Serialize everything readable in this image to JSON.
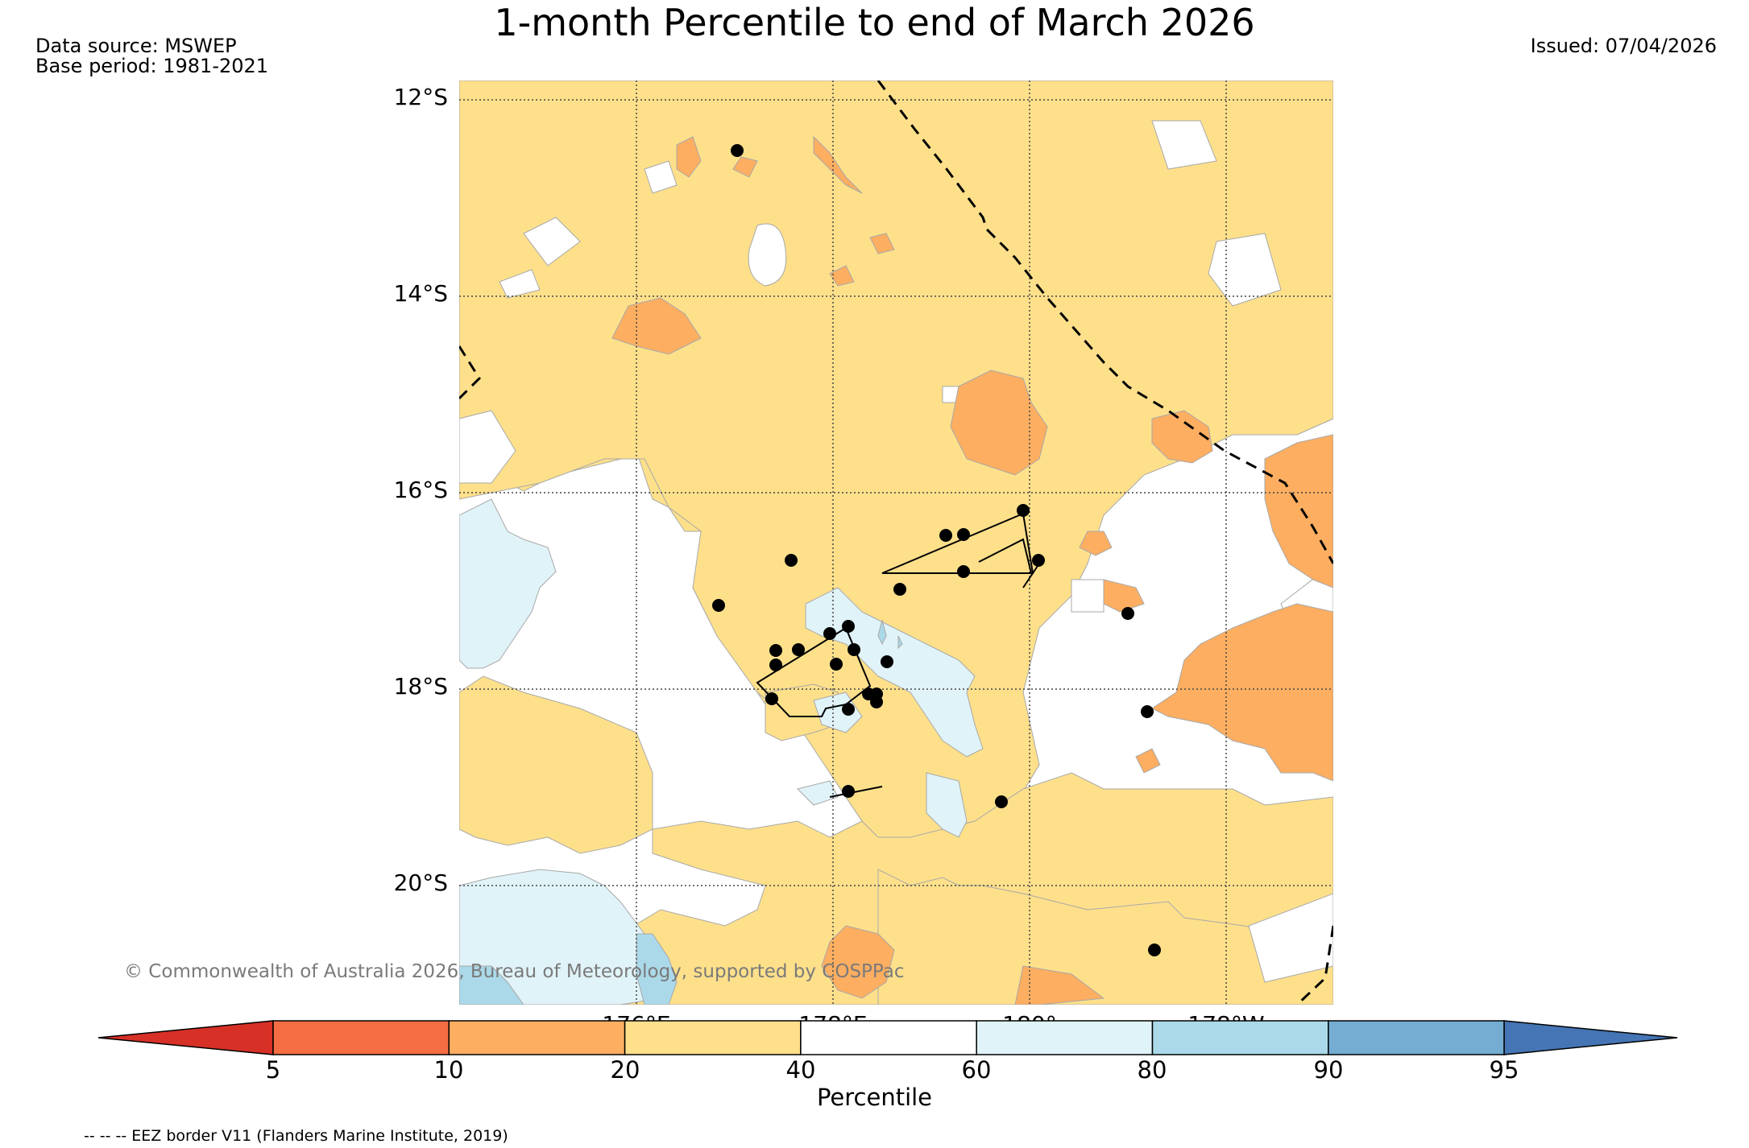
{
  "title": "1-month Percentile to end of March 2026",
  "data_source": "Data source: MSWEP",
  "base_period": "Base period: 1981-2021",
  "issued": "Issued: 07/04/2026",
  "map": {
    "lat_labels": [
      "12°S",
      "14°S",
      "16°S",
      "18°S",
      "20°S"
    ],
    "lon_labels": [
      "176°E",
      "178°E",
      "180°",
      "178°W"
    ],
    "copyright": "© Commonwealth of Australia 2026, Bureau of Meteorology, supported by COSPPac"
  },
  "colorbar": {
    "label": "Percentile",
    "ticks": [
      "5",
      "10",
      "20",
      "40",
      "60",
      "80",
      "90",
      "95"
    ],
    "colors": [
      "#d73027",
      "#f46d43",
      "#fdae61",
      "#fee08b",
      "#ffffff",
      "#e0f3f8",
      "#abd9e9",
      "#74add1",
      "#4575b4"
    ]
  },
  "legend": {
    "eez": "-- -- -- EEZ border V11 (Flanders Marine Institute, 2019)"
  }
}
